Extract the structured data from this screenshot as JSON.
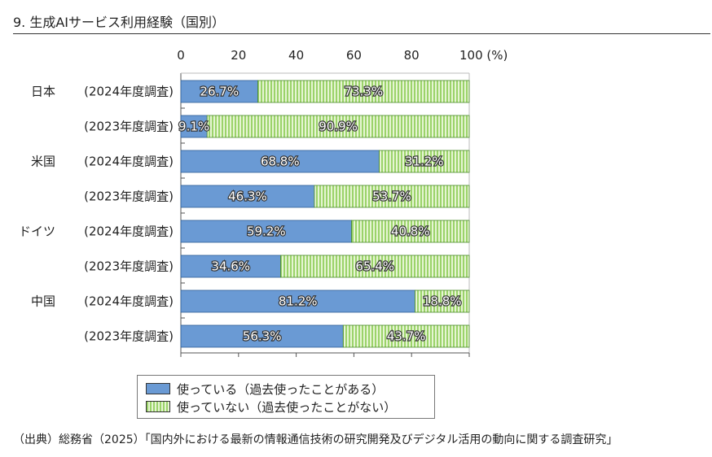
{
  "title": "9. 生成AIサービス利用経験（国別）",
  "source": "（出典）総務省（2025）「国内外における最新の情報通信技術の研究開発及びデジタル活用の動向に関する調査研究」",
  "colors": {
    "used": "#6a9ad4",
    "not_used_stripe": "#9bd36a",
    "not_used_bg": "#e6f5d3"
  },
  "chart_data": {
    "type": "bar",
    "orientation": "horizontal",
    "stacked": true,
    "x_ticks": [
      "0",
      "20",
      "40",
      "60",
      "80",
      "100 (%)"
    ],
    "xlim": [
      0,
      100
    ],
    "categories": [
      {
        "country": "日本",
        "survey": "(2024年度調査)"
      },
      {
        "country": "",
        "survey": "(2023年度調査)"
      },
      {
        "country": "米国",
        "survey": "(2024年度調査)"
      },
      {
        "country": "",
        "survey": "(2023年度調査)"
      },
      {
        "country": "ドイツ",
        "survey": "(2024年度調査)"
      },
      {
        "country": "",
        "survey": "(2023年度調査)"
      },
      {
        "country": "中国",
        "survey": "(2024年度調査)"
      },
      {
        "country": "",
        "survey": "(2023年度調査)"
      }
    ],
    "series": [
      {
        "name": "使っている（過去使ったことがある）",
        "values": [
          26.7,
          9.1,
          68.8,
          46.3,
          59.2,
          34.6,
          81.2,
          56.3
        ],
        "labels": [
          "26.7%",
          "9.1%",
          "68.8%",
          "46.3%",
          "59.2%",
          "34.6%",
          "81.2%",
          "56.3%"
        ]
      },
      {
        "name": "使っていない（過去使ったことがない）",
        "values": [
          73.3,
          90.9,
          31.2,
          53.7,
          40.8,
          65.4,
          18.8,
          43.7
        ],
        "labels": [
          "73.3%",
          "90.9%",
          "31.2%",
          "53.7%",
          "40.8%",
          "65.4%",
          "18.8%",
          "43.7%"
        ]
      }
    ],
    "legend_position": "bottom",
    "grid": false
  }
}
